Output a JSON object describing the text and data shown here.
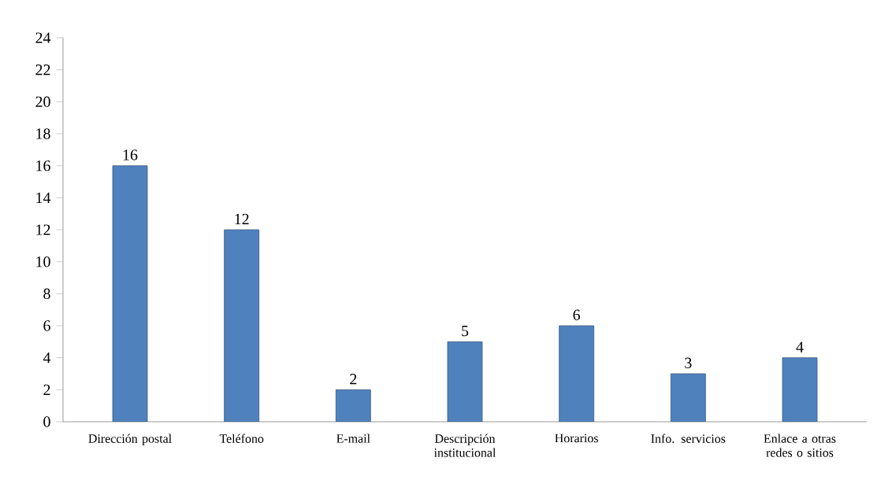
{
  "chart_data": {
    "type": "bar",
    "categories": [
      "Dirección postal",
      "Teléfono",
      "E-mail",
      "Descripción institucional",
      "Horarios",
      "Info. servicios",
      "Enlace a otras redes o sitios"
    ],
    "values": [
      16,
      12,
      2,
      5,
      6,
      3,
      4
    ],
    "color": "#4f81bd",
    "ylim": [
      0,
      24
    ],
    "yticks": [
      0,
      2,
      4,
      6,
      8,
      10,
      12,
      14,
      16,
      18,
      20,
      22,
      24
    ],
    "data_labels": true,
    "grid": false
  }
}
